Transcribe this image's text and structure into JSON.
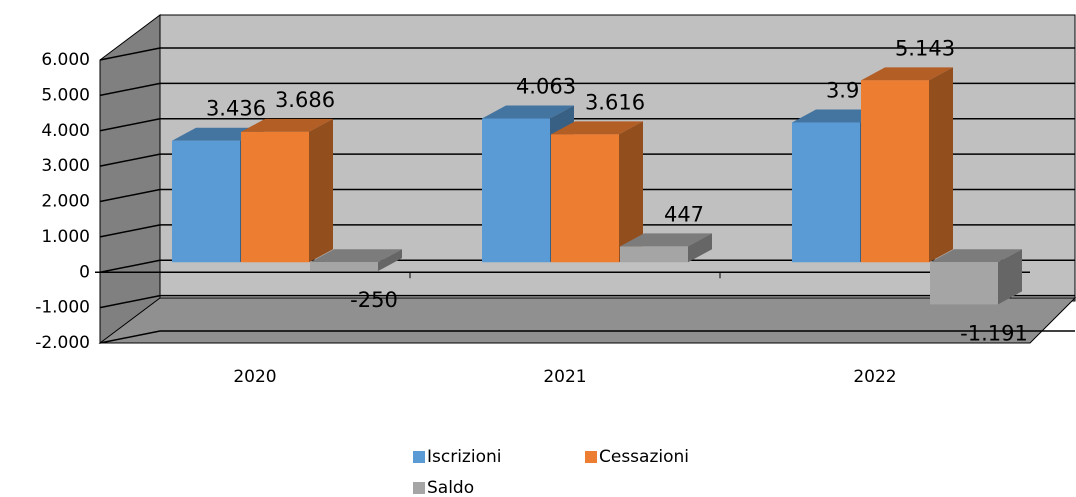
{
  "chart_data": {
    "type": "bar3d",
    "categories": [
      "2020",
      "2021",
      "2022"
    ],
    "series": [
      {
        "name": "Iscrizioni",
        "color": "#5b9bd5",
        "values": [
          3436,
          4063,
          3952
        ],
        "value_labels": [
          "3.436",
          "4.063",
          "3.952"
        ]
      },
      {
        "name": "Cessazioni",
        "color": "#ed7d31",
        "values": [
          3686,
          3616,
          5143
        ],
        "value_labels": [
          "3.686",
          "3.616",
          "5.143"
        ]
      },
      {
        "name": "Saldo",
        "color": "#a5a5a5",
        "values": [
          -250,
          447,
          -1191
        ],
        "value_labels": [
          "-250",
          "447",
          "-1.191"
        ]
      }
    ],
    "ylim": [
      -2000,
      6000
    ],
    "yticks": [
      {
        "value": -2000,
        "label": "-2.000"
      },
      {
        "value": -1000,
        "label": "-1.000"
      },
      0,
      {
        "value": 1000,
        "label": "1.000"
      },
      {
        "value": 2000,
        "label": "2.000"
      },
      {
        "value": 3000,
        "label": "3.000"
      },
      {
        "value": 4000,
        "label": "4.000"
      },
      {
        "value": 5000,
        "label": "5.000"
      },
      {
        "value": 6000,
        "label": "6.000"
      }
    ],
    "grid": true,
    "legend": "bottom"
  }
}
